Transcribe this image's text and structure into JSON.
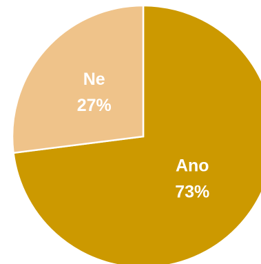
{
  "chart_data": {
    "type": "pie",
    "categories": [
      "Ano",
      "Ne"
    ],
    "values": [
      73,
      27
    ],
    "value_labels": [
      "73%",
      "27%"
    ],
    "colors": [
      "#cc9900",
      "#efc38a"
    ]
  }
}
